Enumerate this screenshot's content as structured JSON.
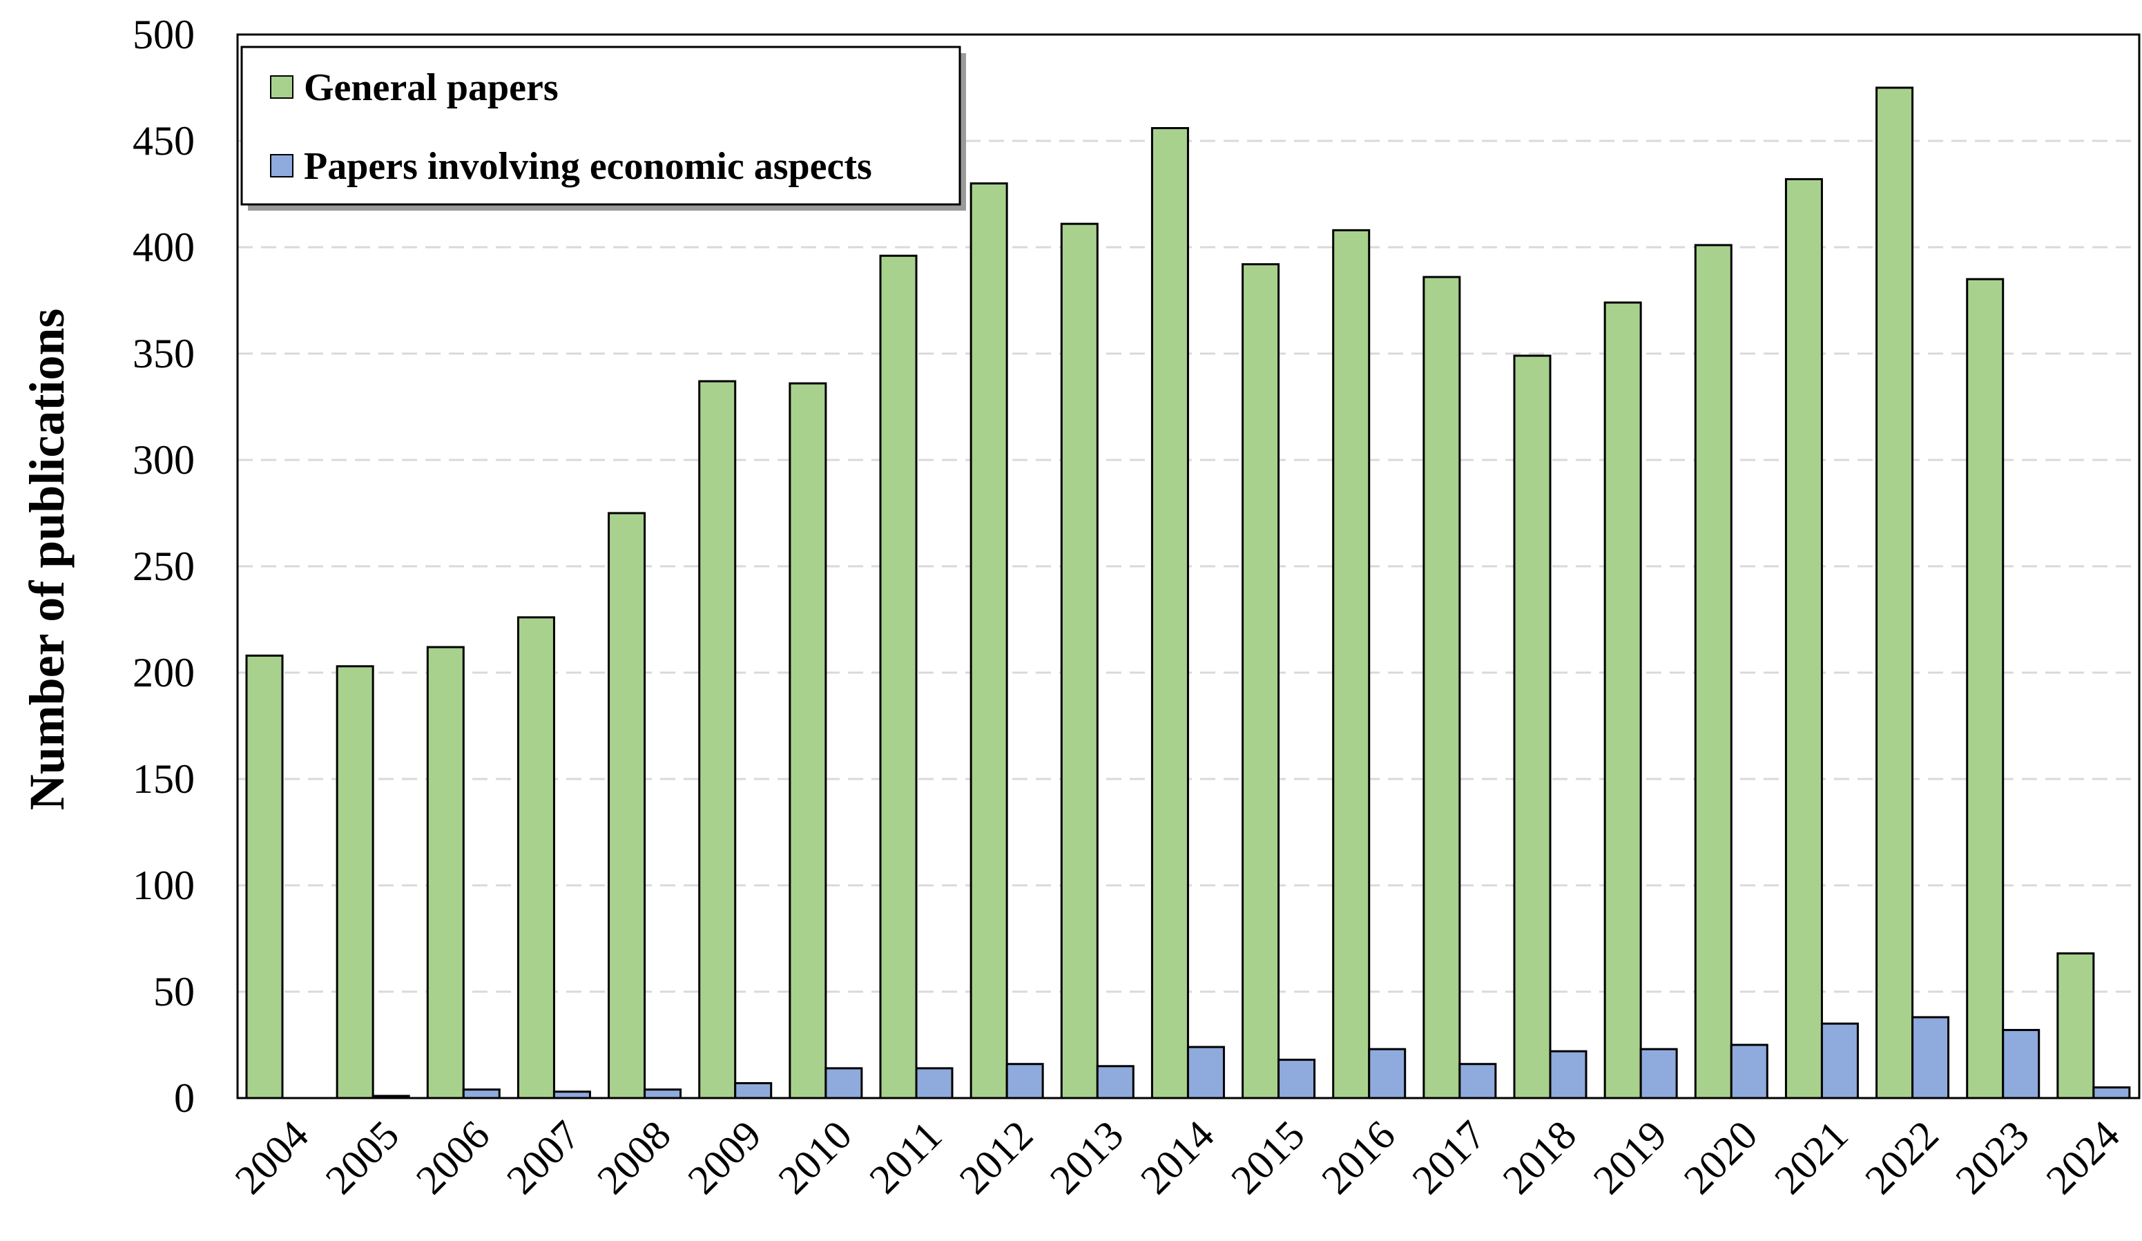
{
  "chart_data": {
    "type": "bar",
    "title": "",
    "xlabel": "",
    "ylabel": "Number of publications",
    "ylim": [
      0,
      500
    ],
    "yticks": [
      0,
      50,
      100,
      150,
      200,
      250,
      300,
      350,
      400,
      450,
      500
    ],
    "grid": "horizontal dashed",
    "legend_position": "top-left",
    "categories": [
      "2004",
      "2005",
      "2006",
      "2007",
      "2008",
      "2009",
      "2010",
      "2011",
      "2012",
      "2013",
      "2014",
      "2015",
      "2016",
      "2017",
      "2018",
      "2019",
      "2020",
      "2021",
      "2022",
      "2023",
      "2024"
    ],
    "series": [
      {
        "name": "General papers",
        "color": "#a9d18e",
        "values": [
          208,
          203,
          212,
          226,
          275,
          337,
          336,
          396,
          430,
          411,
          456,
          392,
          408,
          386,
          349,
          374,
          401,
          432,
          475,
          385,
          68
        ]
      },
      {
        "name": "Papers involving economic aspects",
        "color": "#8faadc",
        "values": [
          0,
          1,
          4,
          3,
          4,
          7,
          14,
          14,
          16,
          15,
          24,
          18,
          23,
          16,
          22,
          23,
          25,
          35,
          38,
          32,
          5
        ]
      }
    ]
  }
}
